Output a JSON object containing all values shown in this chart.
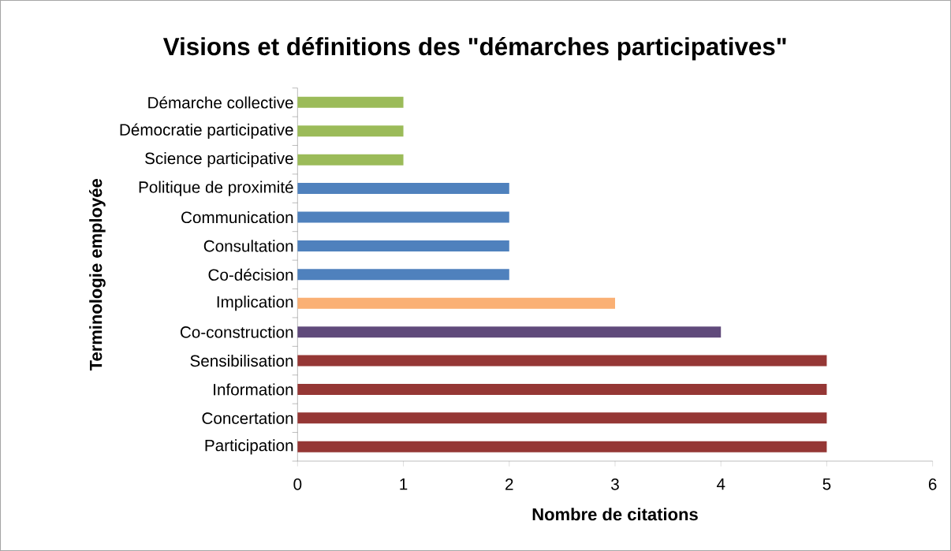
{
  "chart_data": {
    "type": "bar",
    "orientation": "horizontal",
    "title": "Visions et définitions des \"démarches participatives\"",
    "xlabel": "Nombre de citations",
    "ylabel": "Terminologie employée",
    "categories": [
      "Démarche collective",
      "Démocratie participative",
      "Science participative",
      "Politique de proximité",
      "Communication",
      "Consultation",
      "Co-décision",
      "Implication",
      "Co-construction",
      "Sensibilisation",
      "Information",
      "Concertation",
      "Participation"
    ],
    "values": [
      1,
      1,
      1,
      2,
      2,
      2,
      2,
      3,
      4,
      5,
      5,
      5,
      5
    ],
    "colors": [
      "#9bbb59",
      "#9bbb59",
      "#9bbb59",
      "#4f81bd",
      "#4f81bd",
      "#4f81bd",
      "#4f81bd",
      "#fab074",
      "#604a7b",
      "#953735",
      "#953735",
      "#953735",
      "#953735"
    ],
    "xlim": [
      0,
      6
    ],
    "xticks": [
      0,
      1,
      2,
      3,
      4,
      5,
      6
    ],
    "grid": false
  }
}
